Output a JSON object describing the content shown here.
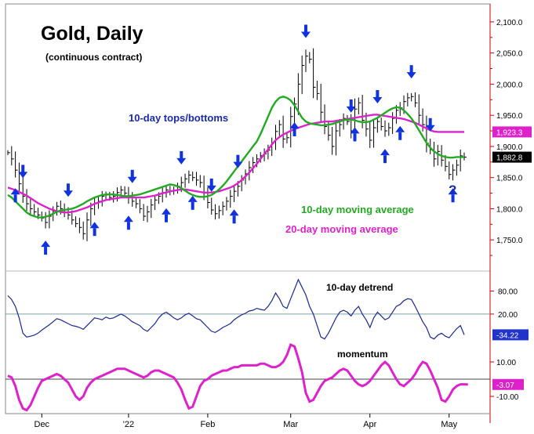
{
  "colors": {
    "price_bars": "#000000",
    "ma10": "#22aa22",
    "ma20": "#dd22cc",
    "arrows": "#1133dd",
    "axis_red": "#cc0000",
    "detrend": "#1a2a88",
    "momentum": "#dd22cc",
    "zero_line": "#7fa0a0"
  },
  "chart_data": {
    "type": "ohlc",
    "title": "Gold, Daily",
    "subtitle": "(continuous contract)",
    "x_labels": [
      "Dec",
      "'22",
      "Feb",
      "Mar",
      "Apr",
      "May"
    ],
    "price_axis": {
      "ticks": [
        "2,100.0",
        "2,050.0",
        "2,000.0",
        "1,950.0",
        "1,900.0",
        "1,850.0",
        "1,800.0",
        "1,750.0"
      ],
      "tick_values": [
        2100,
        2050,
        2000,
        1950,
        1900,
        1850,
        1800,
        1750
      ],
      "ylim": [
        1710,
        2120
      ]
    },
    "last_close": "1,882.8",
    "ma20_value": "1,923.3",
    "price_closes": [
      1890,
      1880,
      1862,
      1840,
      1820,
      1808,
      1800,
      1795,
      1790,
      1785,
      1778,
      1788,
      1796,
      1804,
      1800,
      1795,
      1790,
      1782,
      1776,
      1770,
      1760,
      1782,
      1800,
      1808,
      1812,
      1820,
      1822,
      1818,
      1820,
      1826,
      1830,
      1825,
      1818,
      1812,
      1808,
      1800,
      1788,
      1795,
      1806,
      1814,
      1820,
      1826,
      1830,
      1828,
      1830,
      1836,
      1842,
      1848,
      1854,
      1850,
      1846,
      1842,
      1825,
      1810,
      1798,
      1792,
      1797,
      1804,
      1812,
      1820,
      1828,
      1836,
      1846,
      1856,
      1866,
      1874,
      1880,
      1885,
      1888,
      1894,
      1905,
      1924,
      1935,
      1912,
      1914,
      1948,
      1968,
      2000,
      2030,
      2045,
      2040,
      1995,
      1985,
      1955,
      1932,
      1918,
      1900,
      1925,
      1935,
      1945,
      1940,
      1925,
      1960,
      1970,
      1942,
      1928,
      1910,
      1930,
      1940,
      1932,
      1925,
      1930,
      1945,
      1958,
      1962,
      1972,
      1978,
      1980,
      1970,
      1950,
      1935,
      1905,
      1895,
      1880,
      1892,
      1878,
      1868,
      1855,
      1862,
      1870,
      1885,
      1882.8
    ],
    "ma10": [
      1822,
      1818,
      1812,
      1806,
      1800,
      1794,
      1790,
      1788,
      1786,
      1786,
      1787,
      1789,
      1792,
      1795,
      1797,
      1798,
      1799,
      1800,
      1802,
      1805,
      1808,
      1812,
      1815,
      1818,
      1820,
      1822,
      1823,
      1823,
      1823,
      1822,
      1821,
      1820,
      1820,
      1821,
      1822,
      1823,
      1825,
      1827,
      1829,
      1831,
      1833,
      1835,
      1837,
      1839,
      1838,
      1836,
      1833,
      1829,
      1825,
      1822,
      1820,
      1819,
      1819,
      1820,
      1822,
      1826,
      1831,
      1837,
      1844,
      1852,
      1860,
      1868,
      1876,
      1884,
      1892,
      1900,
      1908,
      1920,
      1934,
      1948,
      1962,
      1972,
      1978,
      1980,
      1978,
      1974,
      1966,
      1956,
      1946,
      1940,
      1937,
      1936,
      1935,
      1934,
      1934,
      1935,
      1936,
      1938,
      1940,
      1942,
      1943,
      1943,
      1942,
      1940,
      1939,
      1939,
      1940,
      1943,
      1946,
      1950,
      1954,
      1958,
      1961,
      1963,
      1962,
      1958,
      1952,
      1945,
      1936,
      1926,
      1916,
      1906,
      1898,
      1892,
      1888,
      1885,
      1883,
      1882,
      1882,
      1883,
      1883,
      1882.8
    ],
    "ma20": [
      1834,
      1832,
      1830,
      1827,
      1824,
      1821,
      1817,
      1813,
      1809,
      1806,
      1803,
      1800,
      1798,
      1796,
      1795,
      1794,
      1794,
      1795,
      1796,
      1798,
      1800,
      1802,
      1805,
      1808,
      1810,
      1812,
      1814,
      1815,
      1816,
      1817,
      1818,
      1818,
      1818,
      1818,
      1818,
      1818,
      1818,
      1819,
      1820,
      1821,
      1823,
      1825,
      1826,
      1828,
      1829,
      1830,
      1831,
      1831,
      1830,
      1829,
      1828,
      1827,
      1826,
      1826,
      1826,
      1827,
      1828,
      1830,
      1832,
      1834,
      1837,
      1841,
      1846,
      1852,
      1858,
      1865,
      1872,
      1880,
      1888,
      1895,
      1903,
      1910,
      1915,
      1919,
      1922,
      1925,
      1928,
      1930,
      1932,
      1934,
      1936,
      1937,
      1938,
      1939,
      1940,
      1940,
      1940,
      1941,
      1942,
      1943,
      1944,
      1945,
      1946,
      1947,
      1948,
      1949,
      1950,
      1951,
      1951,
      1950,
      1949,
      1948,
      1947,
      1946,
      1945,
      1944,
      1942,
      1940,
      1938,
      1935,
      1932,
      1929,
      1926,
      1924,
      1923.3,
      1923.3,
      1923.3,
      1923.3,
      1923.3,
      1923.3,
      1923.3,
      1923.3
    ],
    "detrend": {
      "label": "10-day detrend",
      "ticks": [
        "80.00",
        "20.00"
      ],
      "tick_values": [
        80,
        20
      ],
      "ylim": [
        -60,
        120
      ],
      "last": "-34.22",
      "values": [
        68,
        58,
        40,
        10,
        -30,
        -40,
        -38,
        -35,
        -30,
        -22,
        -15,
        -8,
        0,
        8,
        5,
        0,
        -5,
        -10,
        -12,
        -15,
        -20,
        -10,
        0,
        10,
        8,
        5,
        12,
        8,
        10,
        15,
        20,
        15,
        8,
        0,
        -5,
        -10,
        -20,
        -25,
        -15,
        -5,
        10,
        20,
        25,
        18,
        10,
        5,
        10,
        18,
        22,
        15,
        8,
        5,
        -5,
        -15,
        -25,
        -28,
        -22,
        -15,
        -10,
        -5,
        5,
        12,
        18,
        22,
        28,
        30,
        35,
        32,
        30,
        40,
        55,
        75,
        60,
        40,
        35,
        60,
        85,
        110,
        90,
        70,
        40,
        20,
        -10,
        -40,
        -45,
        -30,
        -10,
        10,
        25,
        30,
        25,
        15,
        30,
        40,
        20,
        5,
        -15,
        10,
        25,
        15,
        5,
        10,
        25,
        40,
        45,
        55,
        60,
        58,
        40,
        20,
        0,
        -15,
        -40,
        -45,
        -35,
        -30,
        -38,
        -42,
        -30,
        -18,
        -10,
        -34.22
      ]
    },
    "momentum": {
      "label": "momentum",
      "ticks": [
        "10.00",
        "-10.00"
      ],
      "tick_values": [
        10,
        -10
      ],
      "ylim": [
        -20,
        20
      ],
      "last": "-3.07",
      "values": [
        2,
        1,
        -4,
        -12,
        -17,
        -18,
        -15,
        -10,
        -5,
        -1,
        0,
        1,
        2,
        3,
        2,
        0,
        -2,
        -6,
        -10,
        -12,
        -10,
        -5,
        -2,
        0,
        1,
        2,
        3,
        4,
        5,
        6,
        6,
        6,
        5,
        4,
        3,
        2,
        1,
        2,
        4,
        5,
        5,
        4,
        3,
        2,
        1,
        -2,
        -6,
        -12,
        -17,
        -16,
        -10,
        -4,
        -1,
        0,
        2,
        3,
        4,
        5,
        5,
        6,
        7,
        7,
        8,
        8,
        8,
        8,
        8,
        9,
        9,
        8,
        7,
        7,
        8,
        10,
        14,
        20,
        19,
        12,
        4,
        -8,
        -13,
        -12,
        -8,
        -4,
        -1,
        0,
        1,
        3,
        5,
        6,
        5,
        2,
        -1,
        -3,
        -4,
        -3,
        -1,
        2,
        5,
        8,
        10,
        8,
        4,
        0,
        -3,
        -4,
        -2,
        0,
        3,
        7,
        10,
        9,
        5,
        0,
        -5,
        -12,
        -13,
        -10,
        -6,
        -4,
        -3,
        -3,
        -3.07
      ]
    },
    "annotations": {
      "tops_bottoms": "10-day tops/bottoms",
      "ma10": "10-day moving average",
      "ma20": "20-day moving average",
      "question": "?"
    },
    "tops": [
      4,
      16,
      33,
      46,
      54,
      61,
      79,
      91,
      98,
      107,
      112
    ],
    "bottoms": [
      2,
      10,
      23,
      32,
      42,
      49,
      60,
      76,
      92,
      100,
      104,
      118
    ],
    "grid": false,
    "legend": "none"
  }
}
